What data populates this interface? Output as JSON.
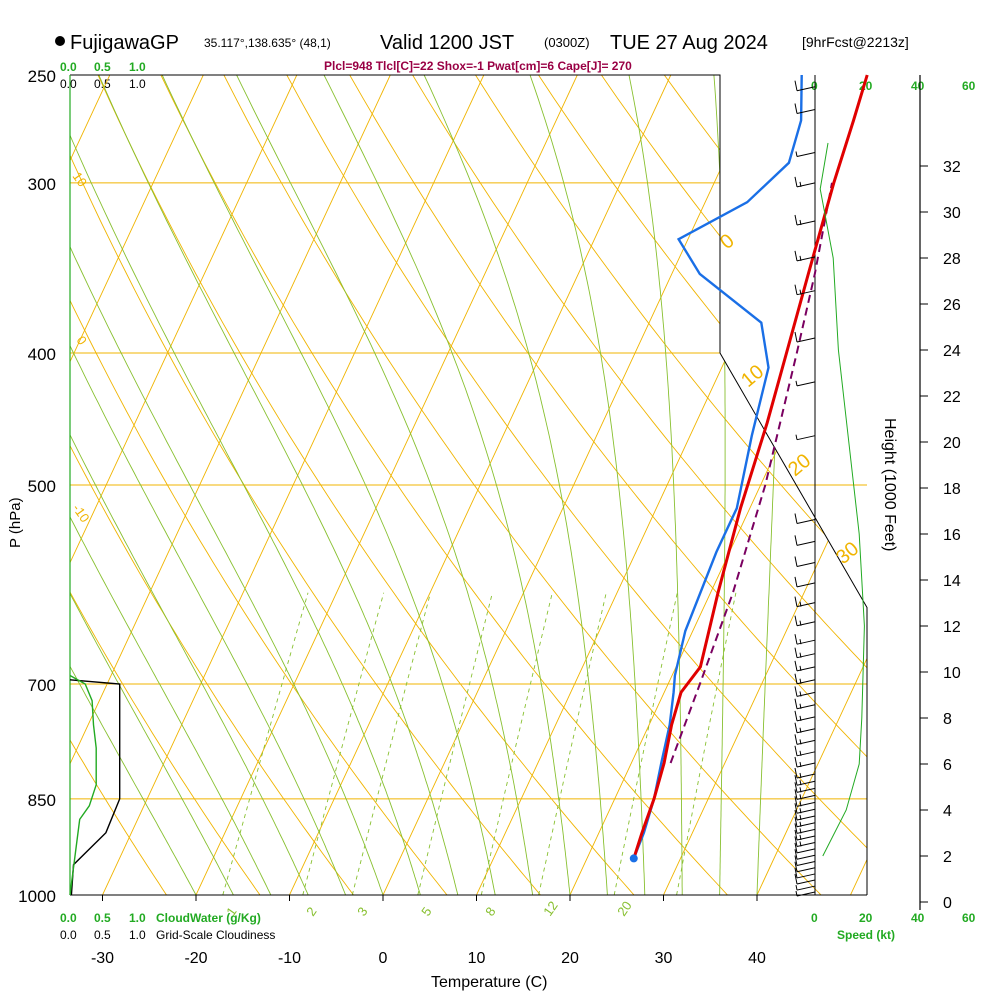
{
  "header": {
    "station": "FujigawaGP",
    "coords": "35.117°,138.635° (48,1)",
    "valid_main": "Valid 1200 JST",
    "valid_utc": "(0300Z)",
    "valid_date": "TUE 27 Aug 2024",
    "forecast": "[9hrFcst@2213z]",
    "indices": "Plcl=948 Tlcl[C]=22 Shox=-1 Pwat[cm]=6 Cape[J]= 270"
  },
  "labels": {
    "pressure_axis": "P (hPa)",
    "temperature_axis": "Temperature (C)",
    "height_axis": "Height (1000 Feet)",
    "cloud_water": "CloudWater (g/Kg)",
    "cloudiness": "Grid-Scale Cloudiness",
    "speed": "Speed (kt)",
    "scale_a": [
      "0.0",
      "0.5",
      "1.0"
    ],
    "scale_b": [
      "0.0",
      "0.5",
      "1.0"
    ],
    "speed_ticks": [
      "0",
      "20",
      "40",
      "60"
    ]
  },
  "colors": {
    "temperature": "#e00000",
    "dewpoint": "#1a6fe6",
    "parcel": "#7a0060",
    "isotherm": "#f0b400",
    "dry_adiabat": "#f0b400",
    "moist_adiabat": "#88c030",
    "mixing_ratio": "#88c030",
    "green": "#22aa22",
    "indices": "#990044"
  },
  "chart_data": {
    "type": "skew-t",
    "pressure_ticks": [
      250,
      300,
      400,
      500,
      700,
      850,
      1000
    ],
    "temperature_ticks": [
      -30,
      -20,
      -10,
      0,
      10,
      20,
      30,
      40
    ],
    "height_ticks_kft": [
      0,
      2,
      4,
      6,
      8,
      10,
      12,
      14,
      16,
      18,
      20,
      22,
      24,
      26,
      28,
      30,
      32
    ],
    "mixing_ratio_labels": [
      "1",
      "2",
      "3",
      "5",
      "8",
      "12",
      "20"
    ],
    "moist_adiabat_labels": [
      "10",
      "0",
      "-10"
    ],
    "dry_adiabat_labels": [
      "0",
      "10",
      "20",
      "30"
    ],
    "temperature_profile": [
      {
        "p": 940,
        "t": 25.0
      },
      {
        "p": 900,
        "t": 24.6
      },
      {
        "p": 850,
        "t": 24.2
      },
      {
        "p": 800,
        "t": 23.5
      },
      {
        "p": 750,
        "t": 22.4
      },
      {
        "p": 710,
        "t": 21.8
      },
      {
        "p": 680,
        "t": 22.6
      },
      {
        "p": 600,
        "t": 20.8
      },
      {
        "p": 520,
        "t": 19.0
      },
      {
        "p": 450,
        "t": 17.6
      },
      {
        "p": 400,
        "t": 16.2
      },
      {
        "p": 350,
        "t": 14.6
      },
      {
        "p": 300,
        "t": 12.8
      },
      {
        "p": 270,
        "t": 11.8
      },
      {
        "p": 250,
        "t": 11.0
      }
    ],
    "dewpoint_profile": [
      {
        "p": 940,
        "t": 25.0
      },
      {
        "p": 900,
        "t": 24.8
      },
      {
        "p": 850,
        "t": 24.2
      },
      {
        "p": 800,
        "t": 23.2
      },
      {
        "p": 750,
        "t": 22.2
      },
      {
        "p": 710,
        "t": 21.0
      },
      {
        "p": 690,
        "t": 20.3
      },
      {
        "p": 640,
        "t": 19.2
      },
      {
        "p": 560,
        "t": 18.6
      },
      {
        "p": 520,
        "t": 18.6
      },
      {
        "p": 460,
        "t": 16.6
      },
      {
        "p": 410,
        "t": 15.0
      },
      {
        "p": 380,
        "t": 12.0
      },
      {
        "p": 350,
        "t": 3.0
      },
      {
        "p": 330,
        "t": -1.0
      },
      {
        "p": 310,
        "t": 4.5
      },
      {
        "p": 290,
        "t": 7.0
      },
      {
        "p": 270,
        "t": 6.2
      },
      {
        "p": 250,
        "t": 4.0
      }
    ],
    "parcel_profile": [
      {
        "p": 800,
        "t": 24.2
      },
      {
        "p": 700,
        "t": 23.4
      },
      {
        "p": 600,
        "t": 22.4
      },
      {
        "p": 500,
        "t": 20.5
      },
      {
        "p": 400,
        "t": 17.3
      },
      {
        "p": 350,
        "t": 15.3
      },
      {
        "p": 300,
        "t": 12.6
      }
    ],
    "surface_pressure": 940,
    "cloudiness_profile": [
      {
        "p": 1000,
        "v": 0.02
      },
      {
        "p": 950,
        "v": 0.05
      },
      {
        "p": 900,
        "v": 0.52
      },
      {
        "p": 850,
        "v": 0.72
      },
      {
        "p": 700,
        "v": 0.72
      },
      {
        "p": 695,
        "v": 0.0
      }
    ],
    "cloudwater_profile": [
      {
        "p": 1000,
        "v": 0.0
      },
      {
        "p": 930,
        "v": 0.08
      },
      {
        "p": 880,
        "v": 0.14
      },
      {
        "p": 860,
        "v": 0.28
      },
      {
        "p": 830,
        "v": 0.38
      },
      {
        "p": 780,
        "v": 0.38
      },
      {
        "p": 750,
        "v": 0.34
      },
      {
        "p": 720,
        "v": 0.32
      },
      {
        "p": 700,
        "v": 0.22
      },
      {
        "p": 690,
        "v": 0.0
      }
    ],
    "wind_speed_profile": [
      {
        "h": 2,
        "v": 3
      },
      {
        "h": 4,
        "v": 12
      },
      {
        "h": 6,
        "v": 17
      },
      {
        "h": 8,
        "v": 18
      },
      {
        "h": 12,
        "v": 19
      },
      {
        "h": 16,
        "v": 17
      },
      {
        "h": 20,
        "v": 13
      },
      {
        "h": 24,
        "v": 9
      },
      {
        "h": 28,
        "v": 7
      },
      {
        "h": 31,
        "v": 2
      },
      {
        "h": 33,
        "v": 5
      }
    ],
    "wind_barbs": [
      {
        "p": 995,
        "spd": 8
      },
      {
        "p": 985,
        "spd": 8
      },
      {
        "p": 975,
        "spd": 10
      },
      {
        "p": 965,
        "spd": 10
      },
      {
        "p": 955,
        "spd": 10
      },
      {
        "p": 945,
        "spd": 12
      },
      {
        "p": 935,
        "spd": 12
      },
      {
        "p": 925,
        "spd": 12
      },
      {
        "p": 915,
        "spd": 15
      },
      {
        "p": 905,
        "spd": 15
      },
      {
        "p": 895,
        "spd": 15
      },
      {
        "p": 885,
        "spd": 15
      },
      {
        "p": 875,
        "spd": 15
      },
      {
        "p": 865,
        "spd": 15
      },
      {
        "p": 855,
        "spd": 15
      },
      {
        "p": 845,
        "spd": 15
      },
      {
        "p": 835,
        "spd": 15
      },
      {
        "p": 825,
        "spd": 15
      },
      {
        "p": 815,
        "spd": 15
      },
      {
        "p": 800,
        "spd": 15
      },
      {
        "p": 785,
        "spd": 15
      },
      {
        "p": 770,
        "spd": 15
      },
      {
        "p": 755,
        "spd": 15
      },
      {
        "p": 740,
        "spd": 15
      },
      {
        "p": 725,
        "spd": 15
      },
      {
        "p": 710,
        "spd": 15
      },
      {
        "p": 695,
        "spd": 15
      },
      {
        "p": 680,
        "spd": 15
      },
      {
        "p": 665,
        "spd": 15
      },
      {
        "p": 650,
        "spd": 15
      },
      {
        "p": 630,
        "spd": 15
      },
      {
        "p": 610,
        "spd": 15
      },
      {
        "p": 590,
        "spd": 12
      },
      {
        "p": 570,
        "spd": 12
      },
      {
        "p": 550,
        "spd": 10
      },
      {
        "p": 530,
        "spd": 10
      },
      {
        "p": 460,
        "spd": 5
      },
      {
        "p": 420,
        "spd": 5
      },
      {
        "p": 390,
        "spd": 10
      },
      {
        "p": 360,
        "spd": 15
      },
      {
        "p": 340,
        "spd": 15
      },
      {
        "p": 320,
        "spd": 15
      },
      {
        "p": 300,
        "spd": 15
      },
      {
        "p": 285,
        "spd": 5
      },
      {
        "p": 265,
        "spd": 10
      },
      {
        "p": 255,
        "spd": 10
      }
    ],
    "speed_tick_values": [
      0,
      20,
      40,
      60
    ],
    "cloud_scale_values": [
      0,
      0.5,
      1.0
    ]
  }
}
